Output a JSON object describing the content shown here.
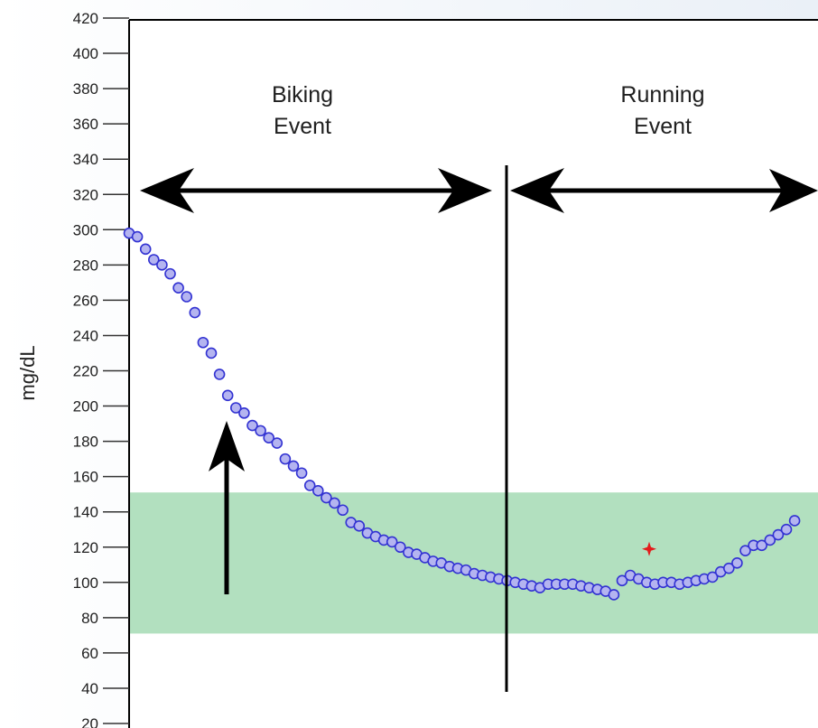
{
  "chart_data": {
    "type": "scatter",
    "title": "",
    "xlabel": "",
    "ylabel": "mg/dL",
    "ylim": [
      20,
      420
    ],
    "yticks": [
      20,
      40,
      60,
      80,
      100,
      120,
      140,
      160,
      180,
      200,
      220,
      240,
      260,
      280,
      300,
      320,
      340,
      360,
      380,
      400,
      420
    ],
    "x_axis_shown": false,
    "target_range": [
      71,
      151
    ],
    "colors": {
      "points_fill": "#b4b4f0",
      "points_stroke": "#3232d2",
      "target_band": "#b2e0bf",
      "marker": "#e41b1b",
      "arrows": "#000000",
      "axis": "#000000"
    },
    "series": [
      {
        "values": [
          298,
          296,
          289,
          283,
          280,
          275,
          267,
          262,
          253,
          236,
          230,
          218,
          206,
          199,
          196,
          189,
          186,
          182,
          179,
          170,
          166,
          162,
          155,
          152,
          148,
          145,
          141,
          134,
          132,
          128,
          126,
          124,
          123,
          120,
          117,
          116,
          114,
          112,
          111,
          109,
          108,
          107,
          105,
          104,
          103,
          102,
          101,
          100,
          99,
          98,
          97,
          99,
          99,
          99,
          99,
          98,
          97,
          96,
          95,
          93,
          101,
          104,
          102,
          100,
          99,
          100,
          100,
          99,
          100,
          101,
          102,
          103,
          106,
          108,
          111,
          118,
          121,
          121,
          124,
          127,
          130,
          135
        ]
      }
    ],
    "marker_point": {
      "symbol": "star",
      "y": 119
    },
    "annotations": {
      "event1_line1": "Biking",
      "event1_line2": "Event",
      "event2_line1": "Running",
      "event2_line2": "Event"
    }
  }
}
